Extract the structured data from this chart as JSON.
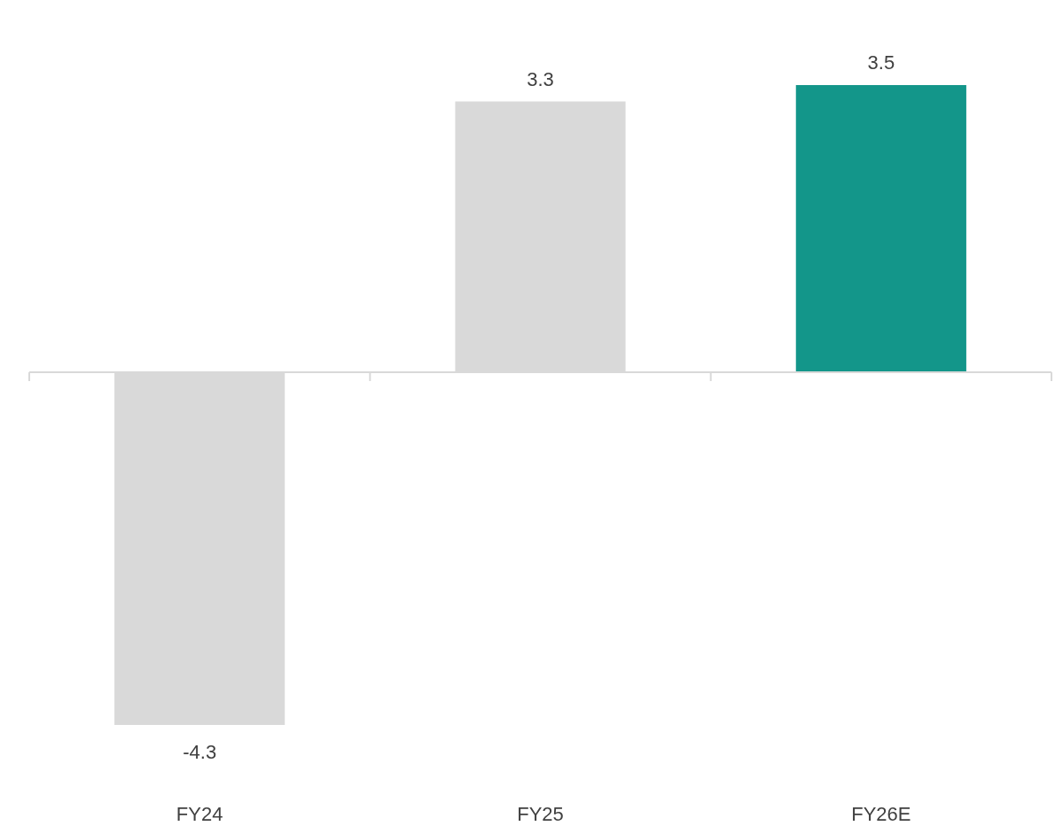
{
  "chart_data": {
    "type": "bar",
    "categories": [
      "FY24",
      "FY25",
      "FY26E"
    ],
    "values": [
      -4.3,
      3.3,
      3.5
    ],
    "colors": [
      "#d9d9d9",
      "#d9d9d9",
      "#13968a"
    ],
    "data_labels": true
  }
}
